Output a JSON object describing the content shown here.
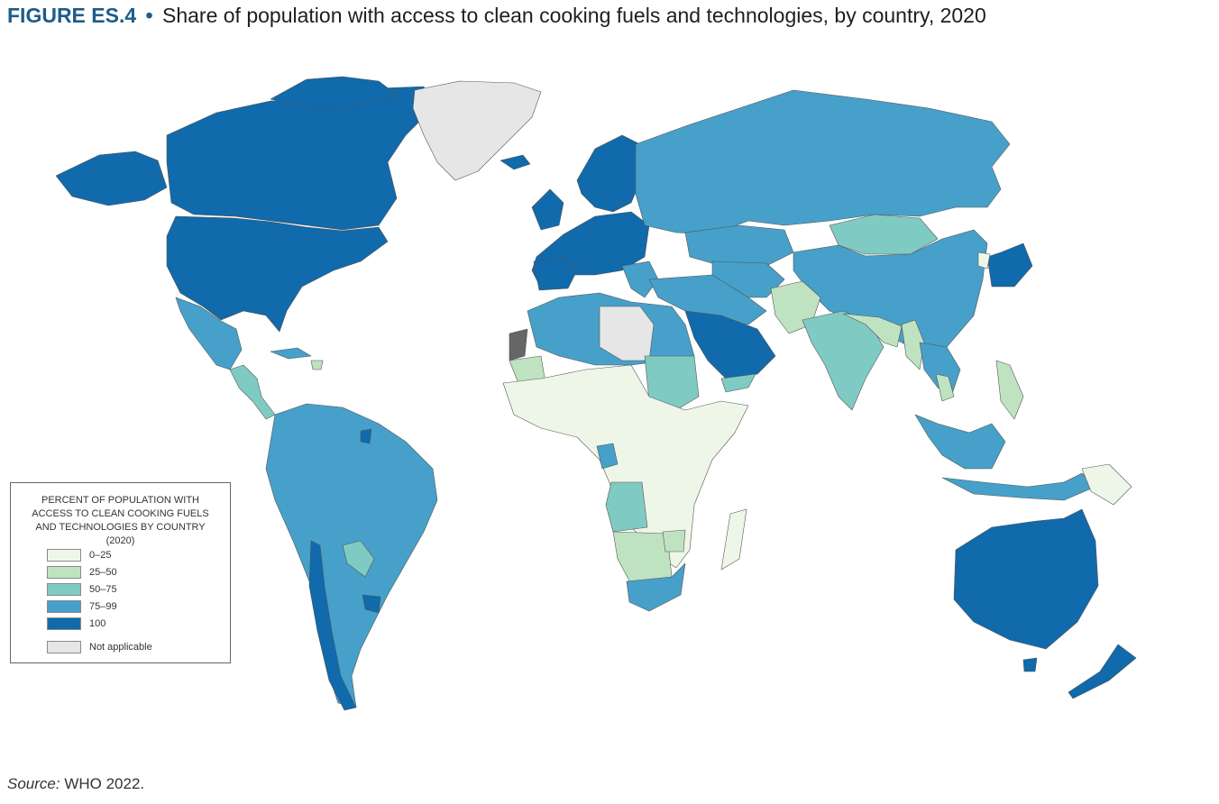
{
  "title": {
    "figure_label": "FIGURE ES.4",
    "separator": "•",
    "text": "Share of population with access to clean cooking fuels and technologies, by country, 2020"
  },
  "legend": {
    "title": "PERCENT OF POPULATION WITH ACCESS TO CLEAN COOKING FUELS AND TECHNOLOGIES BY COUNTRY (2020)",
    "items": [
      {
        "label": "0–25",
        "color": "#eef6e8"
      },
      {
        "label": "25–50",
        "color": "#bfe3c0"
      },
      {
        "label": "50–75",
        "color": "#7fcbc4"
      },
      {
        "label": "75–99",
        "color": "#46a0ca"
      },
      {
        "label": "100",
        "color": "#106aab"
      },
      {
        "label": "Not applicable",
        "color": "#e6e6e6"
      }
    ]
  },
  "source": {
    "prefix": "Source:",
    "text": "WHO 2022."
  },
  "map_colors": {
    "ocean": "#ffffff",
    "border": "#555555",
    "disputed": "#666666"
  }
}
